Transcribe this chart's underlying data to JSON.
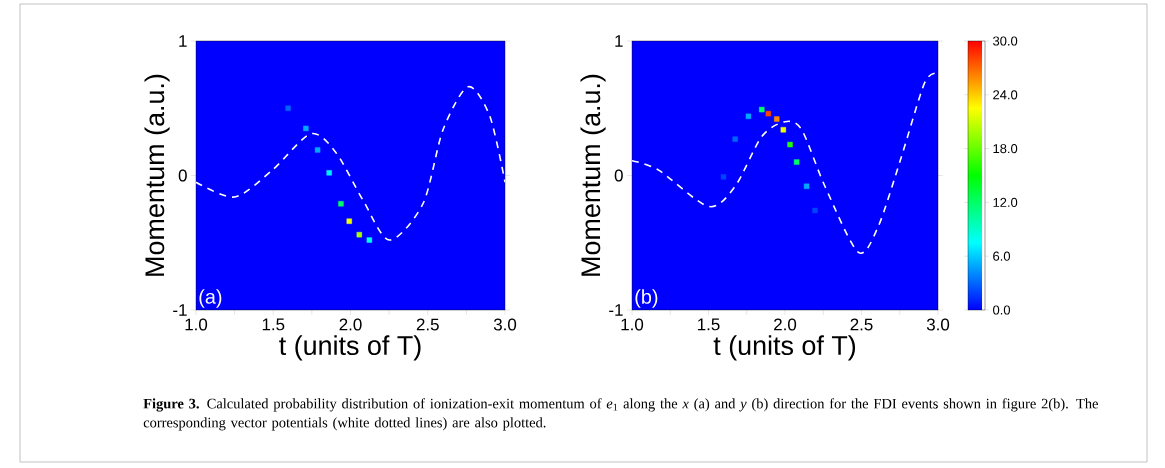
{
  "chart_data": [
    {
      "type": "scatter",
      "xlabel": "t (units of T)",
      "ylabel": "Momentum (a.u.)",
      "xlim": [
        1,
        3
      ],
      "ylim": [
        -1,
        1
      ],
      "xticks": [
        {
          "value": 1,
          "label": "1.0"
        },
        {
          "value": 1.25,
          "label": null
        },
        {
          "value": 1.5,
          "label": "1.5"
        },
        {
          "value": 1.75,
          "label": null
        },
        {
          "value": 2,
          "label": "2.0"
        },
        {
          "value": 2.25,
          "label": null
        },
        {
          "value": 2.5,
          "label": "2.5"
        },
        {
          "value": 2.75,
          "label": null
        },
        {
          "value": 3,
          "label": "3.0"
        }
      ],
      "yticks": [
        -1,
        0,
        1
      ],
      "series": [
        {
          "marker": "square",
          "x": [
            1.596,
            1.711,
            1.787,
            1.862,
            1.938,
            1.992,
            2.057,
            2.122
          ],
          "values": [
            0.5,
            0.35,
            0.19,
            0.02,
            -0.21,
            -0.34,
            -0.44,
            -0.48
          ],
          "colors": [
            "#0066ff",
            "#00aaff",
            "#00aaff",
            "#00eeff",
            "#00ff66",
            "#eeff00",
            "#aaff00",
            "#00ffee"
          ]
        },
        {
          "type": "line",
          "color": "#ffffff",
          "line_style": "dashed",
          "marker": "none",
          "x": [
            1.0,
            1.25,
            1.494,
            1.743,
            1.906,
            2.079,
            2.252,
            2.469,
            2.599,
            2.762,
            2.902,
            3.0
          ],
          "values": [
            -0.05,
            -0.16,
            0.04,
            0.31,
            0.17,
            -0.18,
            -0.48,
            -0.21,
            0.34,
            0.66,
            0.44,
            -0.05
          ]
        }
      ],
      "annotations": [
        "(a)",
        "**Figure 3.**  Calculated probability distribution of ionization-exit momentum of *e*$_{1}$ along the *x* (a) and *y* (b) direction for the FDI events shown in figure 2(b). The corresponding vector potentials (white dotted lines) are also plotted."
      ]
    },
    {
      "type": "scatter",
      "xlabel": "t (units of T)",
      "ylabel": "Momentum (a.u.)",
      "xlim": [
        1,
        3
      ],
      "ylim": [
        -1,
        1
      ],
      "xticks": [
        {
          "value": 1,
          "label": "1.0"
        },
        {
          "value": 1.25,
          "label": null
        },
        {
          "value": 1.5,
          "label": "1.5"
        },
        {
          "value": 1.75,
          "label": null
        },
        {
          "value": 2,
          "label": "2.0"
        },
        {
          "value": 2.25,
          "label": null
        },
        {
          "value": 2.5,
          "label": "2.5"
        },
        {
          "value": 2.75,
          "label": null
        },
        {
          "value": 3,
          "label": "3.0"
        }
      ],
      "yticks": [
        -1,
        0,
        1
      ],
      "clim": [
        0,
        30
      ],
      "cticks": [
        {
          "value": 0,
          "label": "0.0"
        },
        {
          "value": 6,
          "label": "6.0"
        },
        {
          "value": 12,
          "label": "12.0"
        },
        {
          "value": 18,
          "label": "18.0"
        },
        {
          "value": 24,
          "label": "24.0"
        },
        {
          "value": 30,
          "label": "30.0"
        }
      ],
      "series": [
        {
          "marker": "square",
          "x": [
            1.598,
            1.674,
            1.761,
            1.848,
            1.891,
            1.946,
            1.989,
            2.033,
            2.076,
            2.141,
            2.196
          ],
          "values": [
            -0.01,
            0.27,
            0.44,
            0.49,
            0.46,
            0.42,
            0.34,
            0.23,
            0.1,
            -0.08,
            -0.26
          ],
          "cvalues": [
            2,
            3,
            5,
            12,
            28,
            26,
            22,
            16,
            12,
            5,
            2
          ],
          "colors": [
            "#0044ff",
            "#0066ff",
            "#00aaff",
            "#00ff66",
            "#ff4400",
            "#ff8800",
            "#eeff00",
            "#22ff00",
            "#00ff66",
            "#00aaff",
            "#0044ff"
          ]
        },
        {
          "type": "line",
          "color": "#ffffff",
          "line_style": "dashed",
          "marker": "none",
          "x": [
            1.0,
            1.174,
            1.5,
            1.674,
            1.848,
            2.0,
            2.109,
            2.261,
            2.478,
            2.609,
            2.761,
            2.913,
            3.0
          ],
          "values": [
            0.11,
            0.04,
            -0.23,
            -0.08,
            0.29,
            0.4,
            0.34,
            -0.08,
            -0.57,
            -0.38,
            0.14,
            0.69,
            0.76
          ]
        }
      ],
      "annotations": [
        "(b)"
      ]
    }
  ]
}
